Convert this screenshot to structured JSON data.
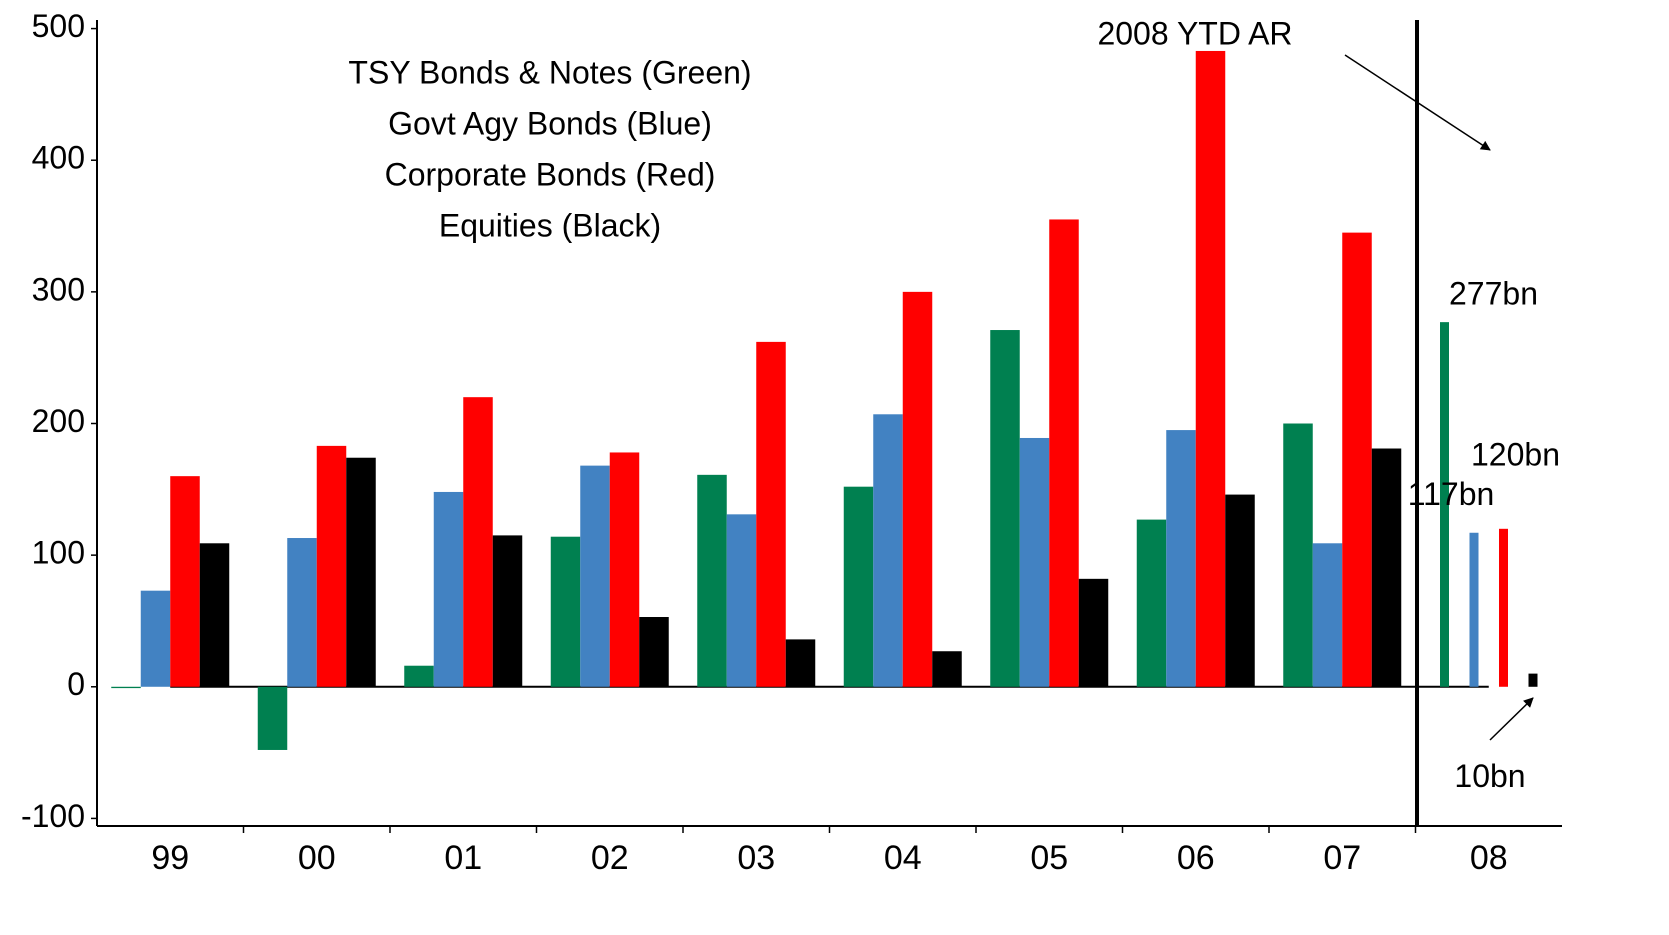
{
  "chart_data": {
    "type": "bar",
    "annotations": [
      "2008 YTD AR"
    ],
    "categories": [
      "99",
      "00",
      "01",
      "02",
      "03",
      "04",
      "05",
      "06",
      "07",
      "08"
    ],
    "series": [
      {
        "name": "TSY Bonds & Notes (Green)",
        "color": "#008050",
        "values": [
          -1,
          -48,
          16,
          114,
          161,
          152,
          271,
          127,
          200,
          277
        ],
        "value_labels": [
          null,
          null,
          null,
          null,
          null,
          null,
          null,
          null,
          null,
          "277bn"
        ]
      },
      {
        "name": "Govt Agy Bonds (Blue)",
        "color": "#4282c2",
        "values": [
          73,
          113,
          148,
          168,
          131,
          207,
          189,
          195,
          109,
          117
        ],
        "value_labels": [
          null,
          null,
          null,
          null,
          null,
          null,
          null,
          null,
          null,
          "117bn"
        ]
      },
      {
        "name": "Corporate Bonds (Red)",
        "color": "#ff0000",
        "values": [
          160,
          183,
          220,
          178,
          262,
          300,
          355,
          483,
          345,
          120
        ],
        "value_labels": [
          null,
          null,
          null,
          null,
          null,
          null,
          null,
          null,
          null,
          "120bn"
        ]
      },
      {
        "name": "Equities (Black)",
        "color": "#000000",
        "values": [
          109,
          174,
          115,
          53,
          36,
          27,
          82,
          146,
          181,
          10
        ],
        "value_labels": [
          null,
          null,
          null,
          null,
          null,
          null,
          null,
          null,
          null,
          "10bn"
        ]
      }
    ],
    "ylim": [
      -105,
      505
    ],
    "yticks": [
      -100,
      0,
      100,
      200,
      300,
      400,
      500
    ],
    "grid": false
  }
}
